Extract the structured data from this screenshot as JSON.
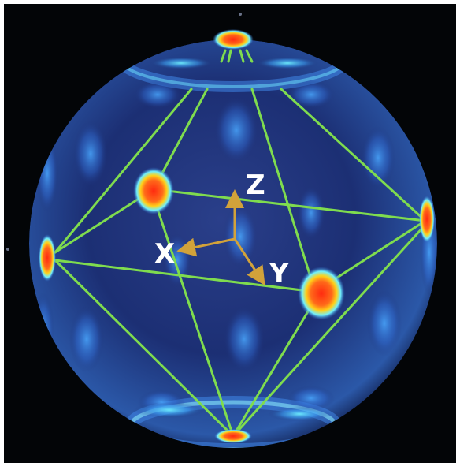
{
  "figure": {
    "axes": {
      "x_label": "X",
      "y_label": "Y",
      "z_label": "Z"
    },
    "colors": {
      "frame": "#ffffff",
      "background": "#030507",
      "sphere_base": "#1b2f73",
      "edge_lines": "#7fdc4e",
      "axis_arrows": "#d2a23a",
      "axis_text": "#ffffff",
      "hotspot_core": "#ff3a12",
      "hotspot_mid": "#ffd21a",
      "hotspot_outer": "#38e6ff"
    }
  }
}
